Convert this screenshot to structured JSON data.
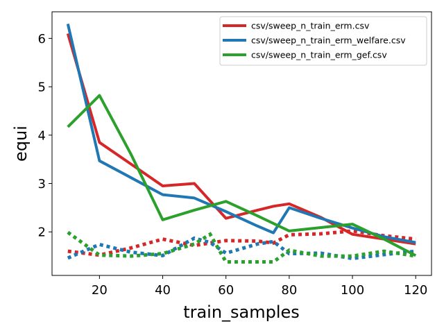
{
  "chart_data": {
    "type": "line",
    "xlabel": "train_samples",
    "ylabel": "equi",
    "xlim": [
      5,
      125
    ],
    "ylim": [
      1.1,
      6.55
    ],
    "x_ticks": [
      20,
      40,
      60,
      80,
      100,
      120
    ],
    "y_ticks": [
      2,
      3,
      4,
      5,
      6
    ],
    "grid": false,
    "legend_position": "top-right",
    "series": [
      {
        "name": "csv/sweep_n_train_erm.csv",
        "color": "#d62728",
        "style": "solid",
        "in_legend": true,
        "x": [
          10,
          20,
          30,
          40,
          50,
          60,
          70,
          75,
          80,
          90,
          100,
          110,
          120
        ],
        "y": [
          6.1,
          3.85,
          3.4,
          2.95,
          3.0,
          2.28,
          2.45,
          2.53,
          2.58,
          2.3,
          1.95,
          1.85,
          1.75
        ]
      },
      {
        "name": "csv/sweep_n_train_erm_welfare.csv",
        "color": "#1f77b4",
        "style": "solid",
        "in_legend": true,
        "x": [
          10,
          20,
          30,
          40,
          50,
          60,
          70,
          75,
          80,
          90,
          100,
          110,
          120
        ],
        "y": [
          6.3,
          3.47,
          3.12,
          2.77,
          2.7,
          2.42,
          2.12,
          1.98,
          2.5,
          2.28,
          2.08,
          1.9,
          1.78
        ]
      },
      {
        "name": "csv/sweep_n_train_erm_gef.csv",
        "color": "#2ca02c",
        "style": "solid",
        "in_legend": true,
        "x": [
          10,
          20,
          30,
          40,
          50,
          60,
          70,
          80,
          90,
          100,
          110,
          120
        ],
        "y": [
          4.17,
          4.82,
          3.6,
          2.25,
          2.45,
          2.63,
          2.33,
          2.02,
          2.09,
          2.16,
          1.85,
          1.51
        ]
      },
      {
        "name": "",
        "color": "#d62728",
        "style": "dotted",
        "in_legend": false,
        "x": [
          10,
          20,
          30,
          40,
          50,
          60,
          70,
          75,
          80,
          90,
          100,
          110,
          120
        ],
        "y": [
          1.6,
          1.52,
          1.67,
          1.85,
          1.72,
          1.82,
          1.81,
          1.77,
          1.94,
          1.96,
          2.02,
          1.92,
          1.85
        ]
      },
      {
        "name": "",
        "color": "#1f77b4",
        "style": "dotted",
        "in_legend": false,
        "x": [
          10,
          20,
          30,
          40,
          50,
          55,
          60,
          70,
          75,
          80,
          90,
          100,
          110,
          120
        ],
        "y": [
          1.46,
          1.74,
          1.58,
          1.51,
          1.87,
          1.78,
          1.56,
          1.75,
          1.8,
          1.55,
          1.56,
          1.45,
          1.53,
          1.6
        ]
      },
      {
        "name": "",
        "color": "#2ca02c",
        "style": "dotted",
        "in_legend": false,
        "x": [
          10,
          20,
          30,
          40,
          50,
          55,
          60,
          70,
          75,
          80,
          90,
          100,
          110,
          120
        ],
        "y": [
          1.99,
          1.52,
          1.5,
          1.55,
          1.75,
          1.95,
          1.38,
          1.38,
          1.38,
          1.62,
          1.5,
          1.5,
          1.6,
          1.5
        ]
      }
    ]
  }
}
